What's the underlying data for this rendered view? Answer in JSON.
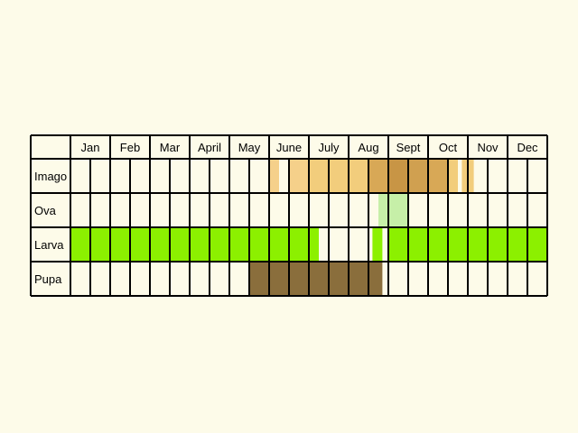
{
  "chart_data": {
    "type": "table",
    "months": [
      "Jan",
      "Feb",
      "Mar",
      "April",
      "May",
      "June",
      "July",
      "Aug",
      "Sept",
      "Oct",
      "Nov",
      "Dec"
    ],
    "stages": [
      {
        "label": "Imago",
        "segments": [
          {
            "from": 5.0,
            "to": 5.25,
            "color": "#f5d08a"
          },
          {
            "from": 5.5,
            "to": 6.0,
            "color": "#f5d08a"
          },
          {
            "from": 6.0,
            "to": 7.5,
            "color": "#f2cd7c"
          },
          {
            "from": 7.5,
            "to": 8.0,
            "color": "#d8a856"
          },
          {
            "from": 8.0,
            "to": 8.5,
            "color": "#c89545"
          },
          {
            "from": 8.5,
            "to": 9.0,
            "color": "#d0a050"
          },
          {
            "from": 9.0,
            "to": 9.5,
            "color": "#d8a856"
          },
          {
            "from": 9.5,
            "to": 9.75,
            "color": "#f2cd7c"
          },
          {
            "from": 9.85,
            "to": 10.15,
            "color": "#f2cd7c"
          }
        ]
      },
      {
        "label": "Ova",
        "segments": [
          {
            "from": 7.75,
            "to": 8.25,
            "color": "#c6efa8"
          },
          {
            "from": 8.25,
            "to": 8.5,
            "color": "#c6efa8"
          }
        ]
      },
      {
        "label": "Larva",
        "segments": [
          {
            "from": 0.0,
            "to": 6.25,
            "color": "#8cf000"
          },
          {
            "from": 7.6,
            "to": 7.85,
            "color": "#8cf000"
          },
          {
            "from": 8.0,
            "to": 12.0,
            "color": "#8cf000"
          }
        ]
      },
      {
        "label": "Pupa",
        "segments": [
          {
            "from": 4.5,
            "to": 7.85,
            "color": "#8a6e3c"
          }
        ]
      }
    ],
    "cells_per_month": 2,
    "grid": true,
    "colors": {
      "background": "#fdfbe9",
      "cell": "#fdfbe9",
      "border": "#000000"
    }
  }
}
